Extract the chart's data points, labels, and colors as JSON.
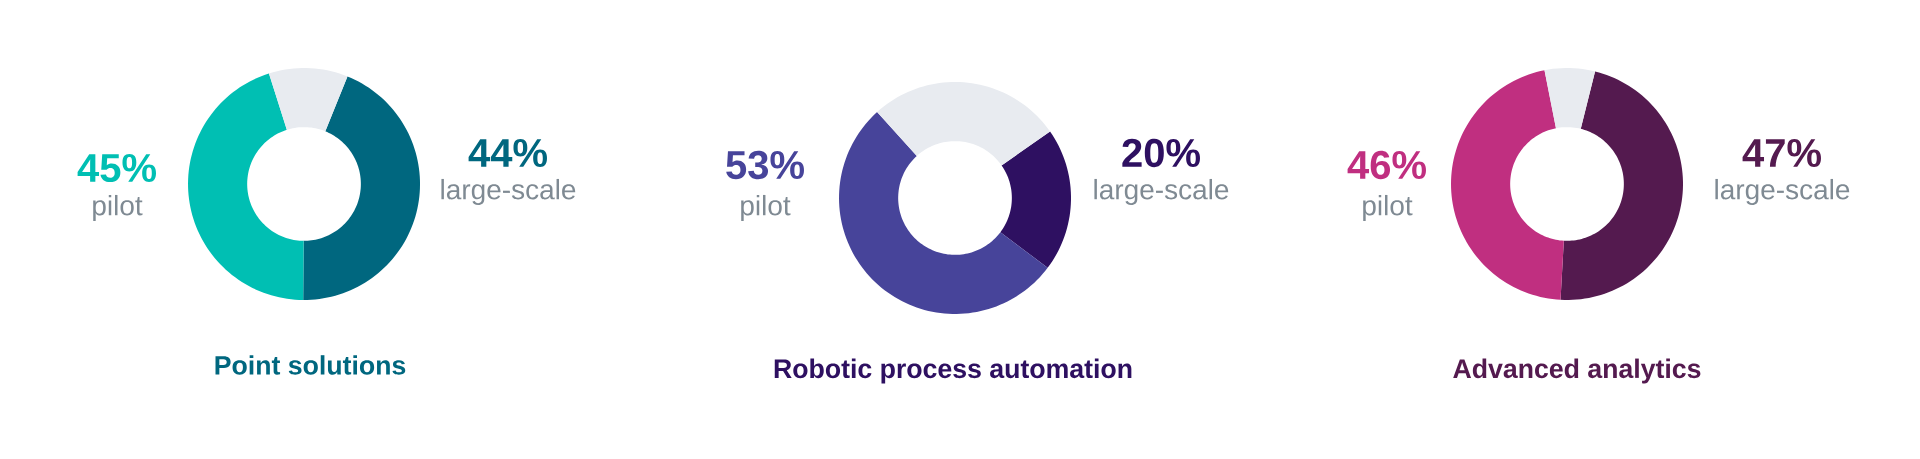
{
  "chart_data": [
    {
      "type": "donut",
      "title": "Point solutions",
      "categories": [
        "pilot",
        "large-scale",
        null
      ],
      "values": [
        45,
        44,
        11
      ],
      "value_labels": [
        "45%",
        "44%",
        null
      ],
      "colors": [
        "#00bfb3",
        "#00677f",
        "#e8ebf0"
      ]
    },
    {
      "type": "donut",
      "title": "Robotic process automation",
      "categories": [
        "pilot",
        "large-scale",
        null
      ],
      "values": [
        53,
        20,
        27
      ],
      "value_labels": [
        "53%",
        "20%",
        null
      ],
      "colors": [
        "#47449a",
        "#2e1061",
        "#e8ebf0"
      ]
    },
    {
      "type": "donut",
      "title": "Advanced analytics",
      "categories": [
        "pilot",
        "large-scale",
        null
      ],
      "values": [
        46,
        47,
        7
      ],
      "value_labels": [
        "46%",
        "47%",
        null
      ],
      "colors": [
        "#c02f80",
        "#541a4f",
        "#e8ebf0"
      ]
    }
  ]
}
